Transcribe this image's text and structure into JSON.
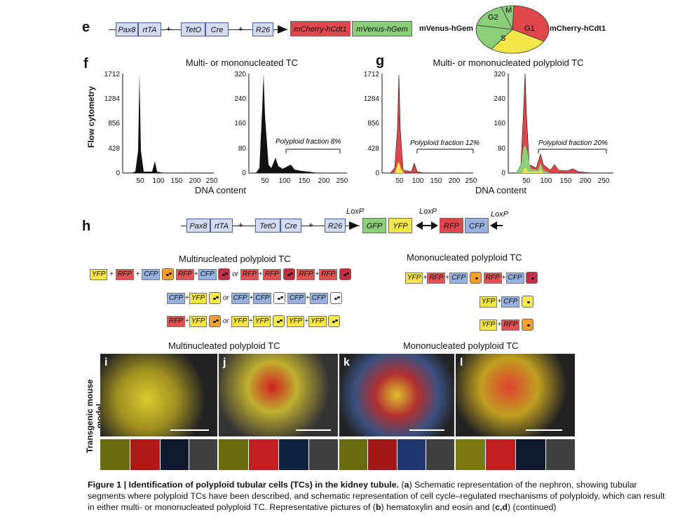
{
  "panels": {
    "e": "e",
    "f": "f",
    "g": "g",
    "h": "h"
  },
  "panel_e": {
    "genes": [
      "Pax8",
      "rtTA",
      "TetO",
      "Cre",
      "R26"
    ],
    "red_box": "mCherry-hCdt1",
    "green_box": "mVenus-hGem",
    "pie_left_label": "mVenus-hGem",
    "pie_right_label": "mCherry-hCdt1",
    "pie": {
      "G1": "G1",
      "G2": "G2",
      "M": "M",
      "S": "S"
    },
    "colors": {
      "red": "#e0474c",
      "green": "#8ccf7a",
      "yellow": "#f3e64a",
      "blue": "#d4dcf2"
    }
  },
  "panel_f": {
    "title": "Multi- or mononucleated TC",
    "ylabel": "Flow cytometry",
    "xlabel": "DNA content",
    "left_yticks": [
      "1712",
      "1284",
      "856",
      "428",
      "0"
    ],
    "right_yticks": [
      "320",
      "240",
      "160",
      "80",
      "0"
    ],
    "xticks": [
      "50",
      "100",
      "150",
      "200",
      "250"
    ],
    "fraction": "Polyploid fraction 8%"
  },
  "panel_g": {
    "title": "Multi- or mononucleated polyploid TC",
    "xlabel": "DNA content",
    "left_yticks": [
      "1712",
      "1284",
      "856",
      "428",
      "0"
    ],
    "right_yticks": [
      "320",
      "240",
      "160",
      "80",
      "0"
    ],
    "xticks": [
      "50",
      "100",
      "150",
      "200",
      "250"
    ],
    "fraction_left": "Polyploid fraction 12%",
    "fraction_right": "Polyploid fraction 20%"
  },
  "panel_h": {
    "genes": [
      "Pax8",
      "rtTA",
      "TetO",
      "Cre",
      "R26"
    ],
    "loxp": "LoxP",
    "fluor": {
      "gfp": "GFP",
      "yfp": "YFP",
      "rfp": "RFP",
      "cfp": "CFP"
    }
  },
  "combos": {
    "multi_title": "Multinucleated  polyploid TC",
    "mono_title": "Mononucleated polyploid TC",
    "plus": "+",
    "or": "or",
    "yfp": "YFP",
    "rfp": "RFP",
    "cfp": "CFP"
  },
  "micro": {
    "ylabel": "Transgenic mouse model",
    "multi_title": "Multinucleated  polyploid TC",
    "mono_title": "Mononucleated polyploid TC",
    "letters": [
      "i",
      "j",
      "k",
      "l"
    ]
  },
  "caption": {
    "bold": "Figure 1 | Identification of polyploid tubular cells (TCs) in the kidney tubule.",
    "a": "a",
    "part1": " Schematic representation of the nephron, showing tubular segments where polyploid TCs have been described, and schematic representation of cell cycle–regulated mechanisms of polyploidy, which can result in either multi- or mononucleated polyploid TC. Representative pictures of (",
    "b": "b",
    "part2": ") hematoxylin and eosin and (",
    "cd": "c,d",
    "part3": ") (continued)",
    "open_paren": "("
  }
}
